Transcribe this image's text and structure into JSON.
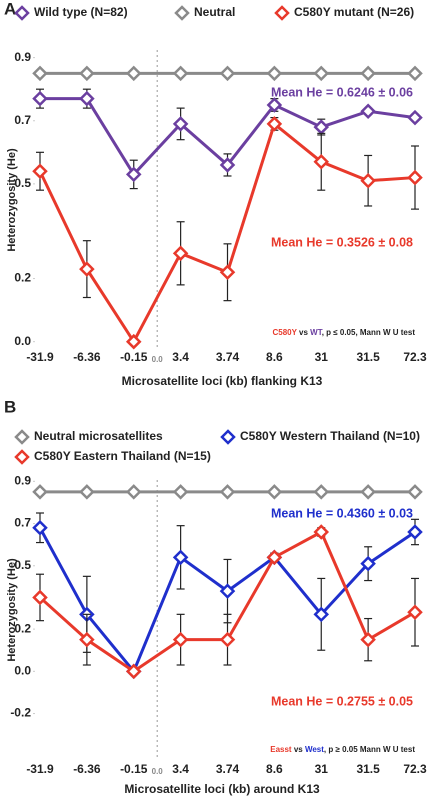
{
  "chart_data": [
    {
      "type": "line",
      "panel": "A",
      "x_label": "Microsatellite loci (kb) flanking K13",
      "y_label": "Heterozygosity (He)",
      "categories": [
        "-31.9",
        "-6.36",
        "-0.15",
        "3.4",
        "3.74",
        "8.6",
        "31",
        "31.5",
        "72.3"
      ],
      "ylim": [
        -0.02,
        0.94
      ],
      "yticks": [
        {
          "value": 0,
          "label": "0.0"
        },
        0.2,
        0.5,
        0.7,
        0.9
      ],
      "zero_marker": "0.0",
      "series": [
        {
          "name": "Wild type (N=82)",
          "color": "#6b3fa0",
          "values": [
            0.77,
            0.77,
            0.53,
            0.69,
            0.56,
            0.75,
            0.68,
            0.73,
            0.71
          ],
          "errors": [
            0.03,
            0.03,
            0.045,
            0.05,
            0.035,
            0.02,
            0.025,
            0.01,
            0.01
          ]
        },
        {
          "name": "Neutral",
          "color": "#8a8a8a",
          "values": [
            0.85,
            0.85,
            0.85,
            0.85,
            0.85,
            0.85,
            0.85,
            0.85,
            0.85
          ]
        },
        {
          "name": "C580Y mutant (N=26)",
          "color": "#e8392b",
          "values": [
            0.54,
            0.23,
            0,
            0.28,
            0.22,
            0.69,
            0.57,
            0.51,
            0.52
          ],
          "errors": [
            0.06,
            0.09,
            0,
            0.1,
            0.09,
            0.02,
            0.09,
            0.08,
            0.1
          ]
        }
      ],
      "annotations": [
        {
          "text": "Mean He = 0.6246 ± 0.06",
          "color": "#6b3fa0"
        },
        {
          "text": "Mean He = 0.3526 ± 0.08",
          "color": "#e8392b"
        }
      ],
      "note": [
        {
          "text": "C580Y",
          "color": "#e8392b"
        },
        {
          "text": " vs ",
          "color": "#222"
        },
        {
          "text": "WT",
          "color": "#6b3fa0"
        },
        {
          "text": ", p ≤ 0.05, Mann W U test",
          "color": "#222"
        }
      ]
    },
    {
      "type": "line",
      "panel": "B",
      "x_label": "Microsatellite loci (kb) around K13",
      "y_label": "Heterozygosity (He)",
      "categories": [
        "-31.9",
        "-6.36",
        "-0.15",
        "3.4",
        "3.74",
        "8.6",
        "31",
        "31.5",
        "72.3"
      ],
      "ylim": [
        -0.42,
        0.93
      ],
      "yticks": [
        -0.2,
        {
          "value": 0,
          "label": "0.0"
        },
        0.2,
        0.5,
        0.7,
        0.9
      ],
      "zero_marker": "0.0",
      "series": [
        {
          "name": "Neutral microsatellites",
          "color": "#8a8a8a",
          "values": [
            0.85,
            0.85,
            0.85,
            0.85,
            0.85,
            0.85,
            0.85,
            0.85,
            0.85
          ]
        },
        {
          "name": "C580Y Western Thailand (N=10)",
          "color": "#1f2fcc",
          "values": [
            0.68,
            0.27,
            0,
            0.54,
            0.38,
            0.54,
            0.27,
            0.51,
            0.66
          ],
          "errors": [
            0.07,
            0.18,
            0,
            0.15,
            0.15,
            0.02,
            0.17,
            0.08,
            0.06
          ]
        },
        {
          "name": "C580Y Eastern Thailand (N=15)",
          "color": "#e8392b",
          "values": [
            0.35,
            0.15,
            0,
            0.15,
            0.15,
            0.54,
            0.66,
            0.15,
            0.28
          ],
          "errors": [
            0.11,
            0.12,
            0,
            0.12,
            0.12,
            0.02,
            0.02,
            0.1,
            0.16
          ]
        }
      ],
      "annotations": [
        {
          "text": "Mean He = 0.4360 ± 0.03",
          "color": "#1f2fcc"
        },
        {
          "text": "Mean He = 0.2755 ± 0.05",
          "color": "#e8392b"
        }
      ],
      "note": [
        {
          "text": "Easst",
          "color": "#e8392b"
        },
        {
          "text": " vs ",
          "color": "#222"
        },
        {
          "text": "West",
          "color": "#1f2fcc"
        },
        {
          "text": ", p ≥ 0.05 Mann W U test",
          "color": "#222"
        }
      ]
    }
  ]
}
